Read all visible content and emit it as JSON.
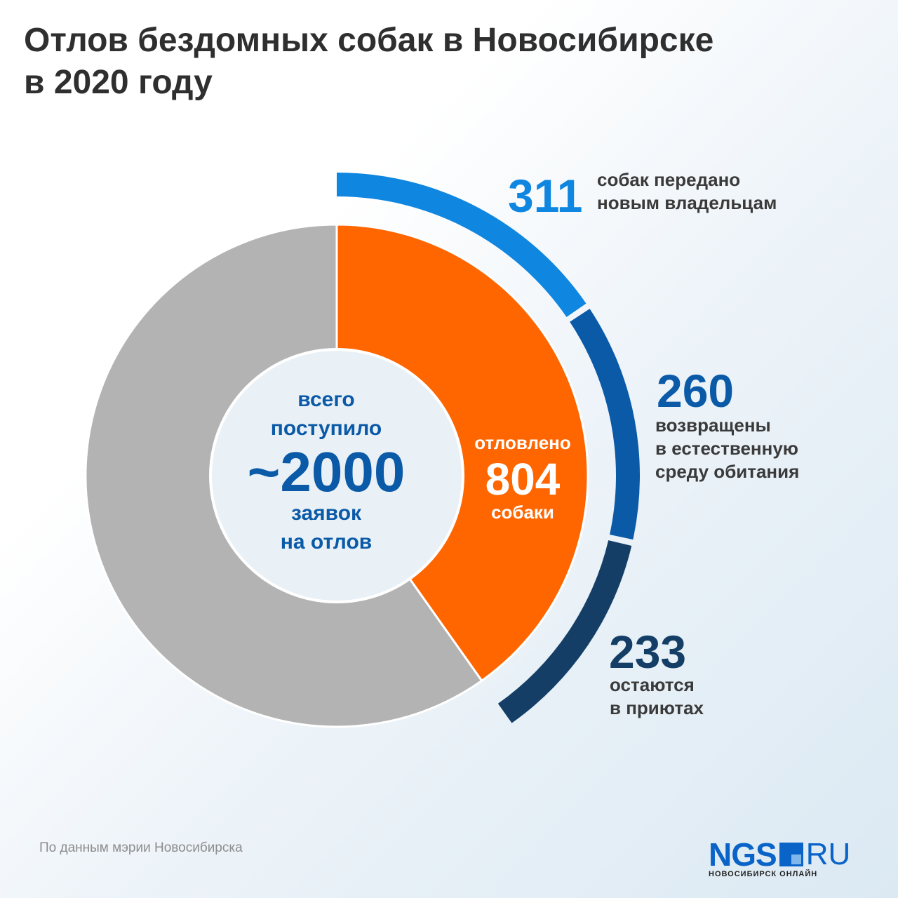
{
  "title": {
    "line1": "Отлов бездомных собак в Новосибирске",
    "line2": "в 2020 году"
  },
  "colors": {
    "caught": "#ff6600",
    "rest": "#b3b3b3",
    "center_bg": "#eaf1f6",
    "center_text": "#0a5aa8",
    "owners": "#0f86e0",
    "returned": "#0a5aa8",
    "shelters": "#143e66"
  },
  "chart_data": {
    "type": "pie",
    "total_requests": 2000,
    "slices": [
      {
        "name": "отловлено",
        "value": 804
      },
      {
        "name": "",
        "value": 1196
      }
    ],
    "center": {
      "line1": "всего",
      "line2": "поступило",
      "number": "~2000",
      "line3": "заявок",
      "line4": "на отлов"
    },
    "caught_label": {
      "line1": "отловлено",
      "number": "804",
      "line2": "собаки"
    },
    "breakdown": [
      {
        "value": 311,
        "number": "311",
        "lines": [
          "собак передано",
          "новым владельцам"
        ]
      },
      {
        "value": 260,
        "number": "260",
        "lines": [
          "возвращены",
          "в естественную",
          "среду обитания"
        ]
      },
      {
        "value": 233,
        "number": "233",
        "lines": [
          "остаются",
          "в приютах"
        ]
      }
    ]
  },
  "source": "По данным мэрии Новосибирска",
  "logo": {
    "ngs": "NGS",
    "ru": "RU",
    "sub": "НОВОСИБИРСК ОНЛАЙН"
  }
}
